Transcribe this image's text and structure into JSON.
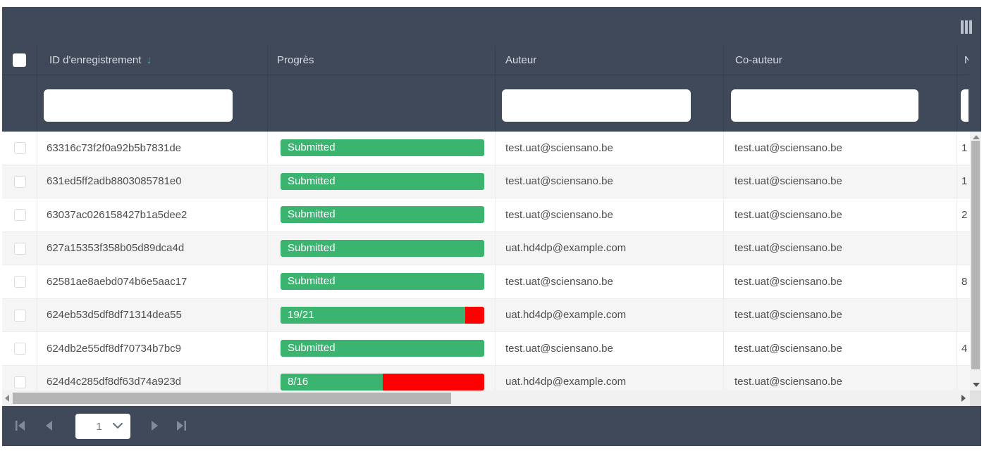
{
  "colors": {
    "panel_bg": "#3f495a",
    "progress_green": "#3ab46f",
    "progress_red": "#fe0000",
    "sort_arrow": "#2ab890"
  },
  "toolbar": {
    "columns_icon": "columns-icon"
  },
  "table": {
    "select_all_checked": false,
    "sort": {
      "column": "ID d'enregistrement",
      "direction": "desc",
      "indicator": "↓"
    },
    "columns": [
      {
        "key": "select",
        "label": ""
      },
      {
        "key": "record_id",
        "label": "ID d'enregistrement"
      },
      {
        "key": "progress",
        "label": "Progrès"
      },
      {
        "key": "author",
        "label": "Auteur"
      },
      {
        "key": "co_author",
        "label": "Co-auteur"
      },
      {
        "key": "n",
        "label": "N"
      }
    ],
    "filters": {
      "record_id": "",
      "author": "",
      "co_author": "",
      "n": ""
    },
    "rows": [
      {
        "record_id": "63316c73f2f0a92b5b7831de",
        "progress": {
          "label": "Submitted",
          "percent": 100
        },
        "author": "test.uat@sciensano.be",
        "co_author": "test.uat@sciensano.be",
        "n": "1"
      },
      {
        "record_id": "631ed5ff2adb8803085781e0",
        "progress": {
          "label": "Submitted",
          "percent": 100
        },
        "author": "test.uat@sciensano.be",
        "co_author": "test.uat@sciensano.be",
        "n": "1"
      },
      {
        "record_id": "63037ac026158427b1a5dee2",
        "progress": {
          "label": "Submitted",
          "percent": 100
        },
        "author": "test.uat@sciensano.be",
        "co_author": "test.uat@sciensano.be",
        "n": "2"
      },
      {
        "record_id": "627a15353f358b05d89dca4d",
        "progress": {
          "label": "Submitted",
          "percent": 100
        },
        "author": "uat.hd4dp@example.com",
        "co_author": "test.uat@sciensano.be",
        "n": ""
      },
      {
        "record_id": "62581ae8aebd074b6e5aac17",
        "progress": {
          "label": "Submitted",
          "percent": 100
        },
        "author": "test.uat@sciensano.be",
        "co_author": "test.uat@sciensano.be",
        "n": "8"
      },
      {
        "record_id": "624eb53d5df8df71314dea55",
        "progress": {
          "label": "19/21",
          "percent": 90.5
        },
        "author": "uat.hd4dp@example.com",
        "co_author": "test.uat@sciensano.be",
        "n": ""
      },
      {
        "record_id": "624db2e55df8df70734b7bc9",
        "progress": {
          "label": "Submitted",
          "percent": 100
        },
        "author": "test.uat@sciensano.be",
        "co_author": "test.uat@sciensano.be",
        "n": "4"
      },
      {
        "record_id": "624d4c285df8df63d74a923d",
        "progress": {
          "label": "8/16",
          "percent": 50
        },
        "author": "uat.hd4dp@example.com",
        "co_author": "test.uat@sciensano.be",
        "n": ""
      }
    ]
  },
  "pagination": {
    "page": "1"
  }
}
